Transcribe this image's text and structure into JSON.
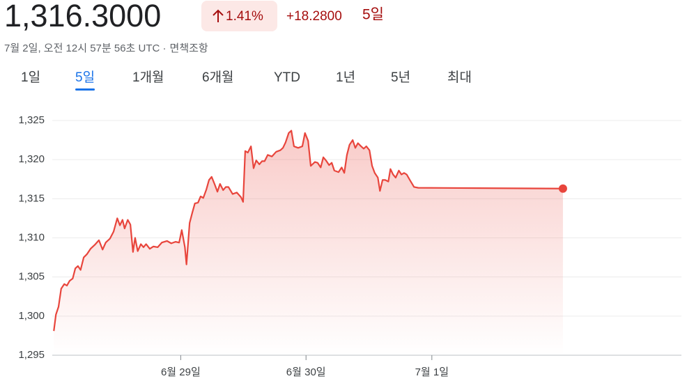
{
  "header": {
    "price": "1,316.3000",
    "change_percent": "1.41%",
    "change": "+18.2800",
    "period": "5일",
    "timestamp": "7월 2일, 오전 12시 57분 56초 UTC ·",
    "disclaimer": "면책조항"
  },
  "tabs": {
    "items": [
      "1일",
      "5일",
      "1개월",
      "6개월",
      "YTD",
      "1년",
      "5년",
      "최대"
    ],
    "selected": 1
  },
  "chart_data": {
    "type": "line",
    "color": "#e8453c",
    "grid": true,
    "x": [
      0.3,
      0.7,
      1.2,
      1.7,
      2.3,
      2.8,
      3.3,
      3.9,
      4.4,
      4.9,
      5.4,
      6.0,
      6.6,
      7.3,
      8.1,
      8.9,
      9.6,
      10.2,
      11.0,
      11.7,
      12.4,
      12.9,
      13.4,
      13.8,
      14.4,
      14.9,
      15.4,
      15.8,
      16.3,
      16.9,
      17.4,
      17.9,
      18.6,
      19.3,
      20.1,
      20.9,
      21.9,
      22.7,
      23.5,
      24.2,
      24.7,
      25.3,
      25.6,
      26.2,
      26.7,
      27.2,
      27.8,
      28.3,
      28.8,
      29.4,
      29.9,
      30.4,
      31.0,
      31.5,
      32.0,
      32.6,
      33.1,
      33.6,
      34.4,
      35.2,
      36.0,
      36.4,
      36.8,
      37.3,
      37.9,
      38.4,
      38.9,
      39.5,
      40.0,
      40.5,
      41.1,
      41.9,
      42.7,
      43.5,
      44.0,
      44.5,
      45.1,
      45.6,
      46.1,
      46.9,
      47.7,
      48.2,
      48.8,
      49.3,
      50.1,
      50.6,
      51.2,
      51.7,
      52.2,
      52.8,
      53.3,
      53.8,
      54.6,
      55.2,
      55.7,
      56.2,
      56.7,
      57.3,
      57.8,
      58.3,
      58.9,
      59.4,
      59.9,
      60.5,
      61.0,
      61.5,
      62.1,
      62.5,
      63.0,
      63.5,
      64.1,
      64.5,
      65.0,
      65.5,
      66.1,
      66.6,
      67.1,
      67.6,
      68.2,
      69.0,
      69.8,
      97.4
    ],
    "values": [
      1298.1,
      1300.2,
      1301.2,
      1303.5,
      1304.1,
      1303.9,
      1304.5,
      1304.8,
      1306.1,
      1306.4,
      1305.9,
      1307.5,
      1307.9,
      1308.6,
      1309.1,
      1309.7,
      1308.5,
      1309.4,
      1309.9,
      1310.8,
      1312.5,
      1311.6,
      1312.3,
      1311.2,
      1312.3,
      1311.7,
      1308.2,
      1310.0,
      1308.3,
      1309.2,
      1308.8,
      1309.2,
      1308.6,
      1308.9,
      1308.8,
      1309.4,
      1309.6,
      1309.3,
      1309.5,
      1309.4,
      1311.0,
      1308.8,
      1306.6,
      1311.9,
      1313.2,
      1314.4,
      1314.5,
      1315.3,
      1315.1,
      1316.2,
      1317.4,
      1317.8,
      1316.8,
      1315.9,
      1316.9,
      1316.1,
      1316.5,
      1316.5,
      1315.6,
      1315.8,
      1315.2,
      1314.6,
      1321.1,
      1320.9,
      1321.7,
      1318.9,
      1319.9,
      1319.4,
      1319.8,
      1319.8,
      1320.6,
      1320.4,
      1321.0,
      1321.2,
      1321.5,
      1322.2,
      1323.4,
      1323.7,
      1321.7,
      1321.5,
      1321.7,
      1323.4,
      1322.4,
      1319.2,
      1319.7,
      1319.6,
      1319.0,
      1320.3,
      1319.9,
      1319.3,
      1319.6,
      1318.6,
      1318.4,
      1319.0,
      1318.3,
      1320.6,
      1321.9,
      1322.5,
      1321.5,
      1322.1,
      1321.7,
      1321.4,
      1321.7,
      1321.2,
      1319.2,
      1318.3,
      1317.7,
      1316.0,
      1317.4,
      1317.4,
      1317.2,
      1318.8,
      1318.1,
      1317.7,
      1318.6,
      1318.1,
      1318.3,
      1318.1,
      1317.4,
      1316.5,
      1316.4,
      1316.3
    ],
    "xlim": [
      0,
      120
    ],
    "xticks": [
      {
        "value": 24.5,
        "label": "6월 29일"
      },
      {
        "value": 48.4,
        "label": "6월 30일"
      },
      {
        "value": 72.4,
        "label": "7월 1일"
      }
    ],
    "ylim": [
      1295,
      1325
    ],
    "yticks": [
      {
        "value": 1295,
        "label": "1,295"
      },
      {
        "value": 1300,
        "label": "1,300"
      },
      {
        "value": 1305,
        "label": "1,305"
      },
      {
        "value": 1310,
        "label": "1,310"
      },
      {
        "value": 1315,
        "label": "1,315"
      },
      {
        "value": 1320,
        "label": "1,320"
      },
      {
        "value": 1325,
        "label": "1,325"
      }
    ]
  }
}
